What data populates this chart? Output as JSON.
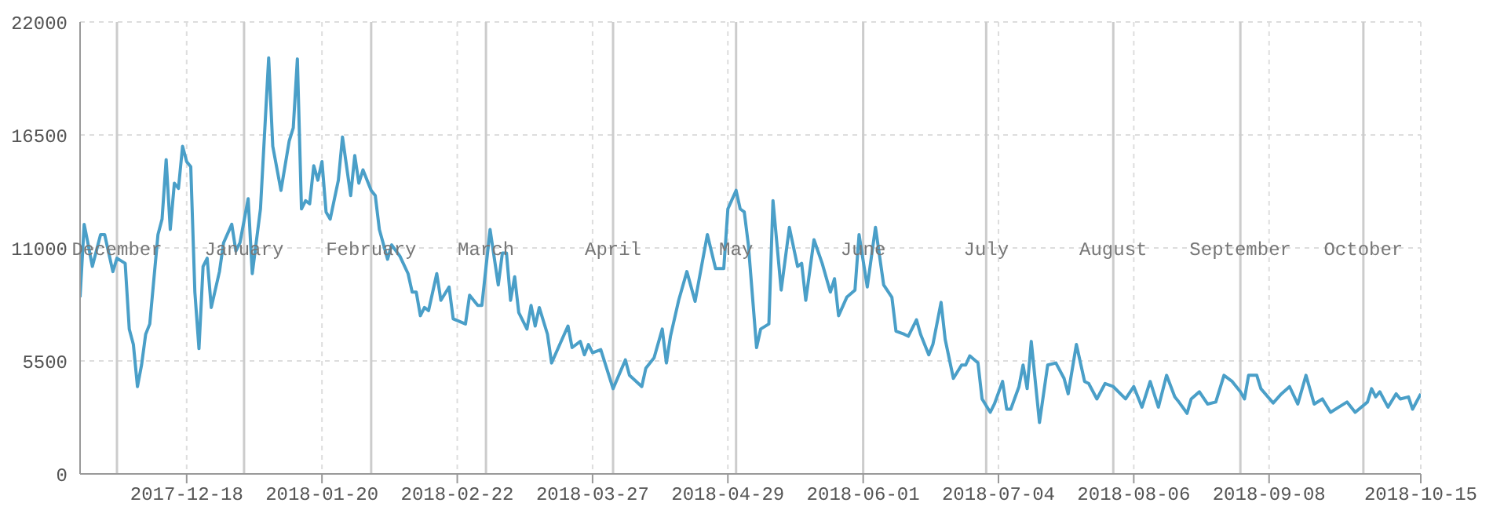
{
  "chart_data": {
    "type": "line",
    "x": [
      "2017-11-22",
      "2017-11-23",
      "2017-11-24",
      "2017-11-25",
      "2017-11-27",
      "2017-11-28",
      "2017-11-30",
      "2017-12-01",
      "2017-12-03",
      "2017-12-04",
      "2017-12-05",
      "2017-12-06",
      "2017-12-07",
      "2017-12-08",
      "2017-12-09",
      "2017-12-11",
      "2017-12-12",
      "2017-12-13",
      "2017-12-14",
      "2017-12-15",
      "2017-12-16",
      "2017-12-17",
      "2017-12-18",
      "2017-12-19",
      "2017-12-20",
      "2017-12-21",
      "2017-12-22",
      "2017-12-23",
      "2017-12-24",
      "2017-12-26",
      "2017-12-27",
      "2017-12-29",
      "2017-12-30",
      "2017-12-31",
      "2018-01-02",
      "2018-01-03",
      "2018-01-05",
      "2018-01-07",
      "2018-01-08",
      "2018-01-10",
      "2018-01-12",
      "2018-01-13",
      "2018-01-14",
      "2018-01-15",
      "2018-01-16",
      "2018-01-17",
      "2018-01-18",
      "2018-01-19",
      "2018-01-20",
      "2018-01-21",
      "2018-01-22",
      "2018-01-24",
      "2018-01-25",
      "2018-01-27",
      "2018-01-28",
      "2018-01-29",
      "2018-01-30",
      "2018-02-01",
      "2018-02-02",
      "2018-02-03",
      "2018-02-05",
      "2018-02-06",
      "2018-02-08",
      "2018-02-10",
      "2018-02-11",
      "2018-02-12",
      "2018-02-13",
      "2018-02-14",
      "2018-02-15",
      "2018-02-17",
      "2018-02-18",
      "2018-02-20",
      "2018-02-21",
      "2018-02-24",
      "2018-02-25",
      "2018-02-27",
      "2018-02-28",
      "2018-03-02",
      "2018-03-04",
      "2018-03-05",
      "2018-03-06",
      "2018-03-07",
      "2018-03-08",
      "2018-03-09",
      "2018-03-11",
      "2018-03-12",
      "2018-03-13",
      "2018-03-14",
      "2018-03-16",
      "2018-03-17",
      "2018-03-19",
      "2018-03-21",
      "2018-03-22",
      "2018-03-24",
      "2018-03-25",
      "2018-03-26",
      "2018-03-27",
      "2018-03-29",
      "2018-04-01",
      "2018-04-04",
      "2018-04-05",
      "2018-04-08",
      "2018-04-09",
      "2018-04-11",
      "2018-04-13",
      "2018-04-14",
      "2018-04-15",
      "2018-04-17",
      "2018-04-19",
      "2018-04-21",
      "2018-04-24",
      "2018-04-26",
      "2018-04-28",
      "2018-04-29",
      "2018-05-01",
      "2018-05-02",
      "2018-05-03",
      "2018-05-04",
      "2018-05-06",
      "2018-05-07",
      "2018-05-09",
      "2018-05-10",
      "2018-05-12",
      "2018-05-14",
      "2018-05-16",
      "2018-05-17",
      "2018-05-18",
      "2018-05-20",
      "2018-05-22",
      "2018-05-24",
      "2018-05-25",
      "2018-05-26",
      "2018-05-28",
      "2018-05-30",
      "2018-05-31",
      "2018-06-02",
      "2018-06-04",
      "2018-06-06",
      "2018-06-08",
      "2018-06-09",
      "2018-06-11",
      "2018-06-12",
      "2018-06-14",
      "2018-06-15",
      "2018-06-17",
      "2018-06-18",
      "2018-06-20",
      "2018-06-21",
      "2018-06-23",
      "2018-06-25",
      "2018-06-26",
      "2018-06-27",
      "2018-06-29",
      "2018-06-30",
      "2018-07-02",
      "2018-07-03",
      "2018-07-05",
      "2018-07-06",
      "2018-07-07",
      "2018-07-09",
      "2018-07-10",
      "2018-07-11",
      "2018-07-12",
      "2018-07-14",
      "2018-07-16",
      "2018-07-18",
      "2018-07-20",
      "2018-07-21",
      "2018-07-23",
      "2018-07-25",
      "2018-07-26",
      "2018-07-28",
      "2018-07-30",
      "2018-08-01",
      "2018-08-04",
      "2018-08-06",
      "2018-08-08",
      "2018-08-10",
      "2018-08-12",
      "2018-08-14",
      "2018-08-16",
      "2018-08-17",
      "2018-08-19",
      "2018-08-20",
      "2018-08-22",
      "2018-08-24",
      "2018-08-26",
      "2018-08-28",
      "2018-08-30",
      "2018-09-01",
      "2018-09-02",
      "2018-09-03",
      "2018-09-05",
      "2018-09-06",
      "2018-09-09",
      "2018-09-11",
      "2018-09-13",
      "2018-09-15",
      "2018-09-17",
      "2018-09-19",
      "2018-09-21",
      "2018-09-23",
      "2018-09-25",
      "2018-09-27",
      "2018-09-29",
      "2018-10-02",
      "2018-10-03",
      "2018-10-04",
      "2018-10-05",
      "2018-10-07",
      "2018-10-09",
      "2018-10-10",
      "2018-10-12",
      "2018-10-13",
      "2018-10-15"
    ],
    "series": [
      {
        "color": "#4a9fc8",
        "values": [
          8600,
          12150,
          11150,
          10100,
          11650,
          11650,
          9850,
          10500,
          10250,
          7050,
          6300,
          4250,
          5300,
          6800,
          7300,
          11650,
          12400,
          15300,
          11900,
          14150,
          13900,
          15950,
          15200,
          14950,
          8850,
          6100,
          10100,
          10500,
          8100,
          9850,
          11250,
          12150,
          10850,
          11250,
          13400,
          9750,
          12900,
          20250,
          15950,
          13800,
          16200,
          16850,
          20200,
          12900,
          13300,
          13150,
          15000,
          14300,
          15200,
          12750,
          12400,
          14300,
          16400,
          13550,
          15500,
          14150,
          14800,
          13800,
          13550,
          11900,
          10450,
          11150,
          10600,
          9750,
          8850,
          8850,
          7700,
          8100,
          7950,
          9750,
          8450,
          9100,
          7550,
          7300,
          8700,
          8200,
          8200,
          11900,
          9200,
          10750,
          10750,
          8450,
          9600,
          7850,
          7050,
          8200,
          7200,
          8100,
          6800,
          5400,
          6300,
          7200,
          6150,
          6450,
          5800,
          6300,
          5900,
          6050,
          4150,
          5550,
          4800,
          4250,
          5150,
          5650,
          7050,
          5400,
          6700,
          8450,
          9850,
          8400,
          11650,
          10000,
          10000,
          12900,
          13800,
          12900,
          12750,
          11150,
          6150,
          7050,
          7300,
          13300,
          8950,
          12000,
          10100,
          10250,
          8450,
          11400,
          10250,
          8850,
          9500,
          7700,
          8600,
          8950,
          11650,
          9100,
          12000,
          9200,
          8600,
          6950,
          6800,
          6700,
          7500,
          6800,
          5800,
          6300,
          8350,
          6550,
          4650,
          5300,
          5300,
          5750,
          5400,
          3650,
          3000,
          3400,
          4500,
          3150,
          3150,
          4250,
          5300,
          4150,
          6450,
          2500,
          5300,
          5400,
          4650,
          3900,
          6300,
          4500,
          4400,
          3650,
          4400,
          4250,
          3650,
          4250,
          3250,
          4500,
          3250,
          4800,
          3750,
          3500,
          2950,
          3650,
          4000,
          3400,
          3500,
          4800,
          4500,
          4000,
          3650,
          4800,
          4800,
          4150,
          3450,
          3900,
          4250,
          3400,
          4800,
          3400,
          3650,
          3000,
          3250,
          3500,
          3000,
          3500,
          4150,
          3750,
          4000,
          3250,
          3900,
          3650,
          3750,
          3150,
          3900
        ]
      }
    ],
    "xlim": [
      "2017-11-22",
      "2018-10-15"
    ],
    "xticks": [
      "2017-12-18",
      "2018-01-20",
      "2018-02-22",
      "2018-03-27",
      "2018-04-29",
      "2018-06-01",
      "2018-07-04",
      "2018-08-06",
      "2018-09-08",
      "2018-10-15"
    ],
    "ylim": [
      0,
      22000
    ],
    "yticks": [
      0,
      5500,
      11000,
      16500,
      22000
    ],
    "grid": true,
    "ref_lines": [
      {
        "axis": "x",
        "value": "2017-12-01",
        "label": "December",
        "color": "#cccccc"
      },
      {
        "axis": "x",
        "value": "2018-01-01",
        "label": "January",
        "color": "#cccccc"
      },
      {
        "axis": "x",
        "value": "2018-02-01",
        "label": "February",
        "color": "#cccccc"
      },
      {
        "axis": "x",
        "value": "2018-03-01",
        "label": "March",
        "color": "#cccccc"
      },
      {
        "axis": "x",
        "value": "2018-04-01",
        "label": "April",
        "color": "#cccccc"
      },
      {
        "axis": "x",
        "value": "2018-05-01",
        "label": "May",
        "color": "#cccccc"
      },
      {
        "axis": "x",
        "value": "2018-06-01",
        "label": "June",
        "color": "#cccccc"
      },
      {
        "axis": "x",
        "value": "2018-07-01",
        "label": "July",
        "color": "#cccccc"
      },
      {
        "axis": "x",
        "value": "2018-08-01",
        "label": "August",
        "color": "#cccccc"
      },
      {
        "axis": "x",
        "value": "2018-09-01",
        "label": "September",
        "color": "#cccccc"
      },
      {
        "axis": "x",
        "value": "2018-10-01",
        "label": "October",
        "color": "#cccccc"
      }
    ]
  }
}
